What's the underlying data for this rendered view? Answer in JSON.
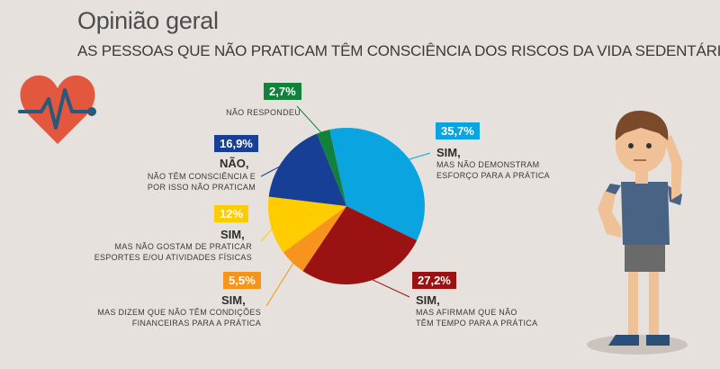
{
  "header": {
    "title": "Opinião geral",
    "subtitle": "AS PESSOAS QUE NÃO PRATICAM TÊM CONSCIÊNCIA DOS RISCOS DA VIDA SEDENTÁRIA?"
  },
  "icons": {
    "left": "heart-pulse-icon",
    "right": "thinking-man-illustration"
  },
  "chart_data": {
    "type": "pie",
    "title": "AS PESSOAS QUE NÃO PRATICAM TÊM CONSCIÊNCIA DOS RISCOS DA VIDA SEDENTÁRIA?",
    "slices": [
      {
        "value": 35.7,
        "pct_label": "35,7%",
        "title": "SIM,",
        "desc": "MAS NÃO DEMONSTRAM\nESFORÇO PARA A PRÁTICA",
        "color": "#0aa5e0"
      },
      {
        "value": 27.2,
        "pct_label": "27,2%",
        "title": "SIM,",
        "desc": "MAS AFIRMAM QUE NÃO\nTÊM TEMPO PARA A PRÁTICA",
        "color": "#9b1212"
      },
      {
        "value": 5.5,
        "pct_label": "5,5%",
        "title": "SIM,",
        "desc": "MAS DIZEM QUE NÃO TÊM CONDIÇÕES\nFINANCEIRAS PARA A PRÁTICA",
        "color": "#f7941d"
      },
      {
        "value": 12,
        "pct_label": "12%",
        "title": "SIM,",
        "desc": "MAS NÃO GOSTAM DE PRATICAR\nESPORTES E/OU ATIVIDADES FÍSICAS",
        "color": "#ffcc00"
      },
      {
        "value": 16.9,
        "pct_label": "16,9%",
        "title": "NÃO,",
        "desc": "NÃO TÊM CONSCIÊNCIA E\nPOR ISSO NÃO PRATICAM",
        "color": "#183f96"
      },
      {
        "value": 2.7,
        "pct_label": "2,7%",
        "title": "",
        "desc": "NÃO RESPONDEU",
        "color": "#11813c"
      }
    ]
  }
}
